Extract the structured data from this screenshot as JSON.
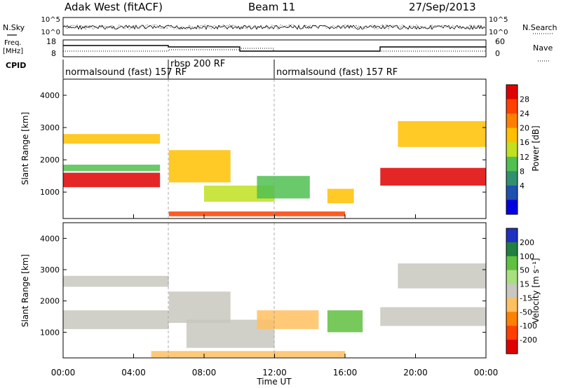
{
  "header": {
    "title": "Adak West (fitACF)",
    "beam": "Beam 11",
    "date": "27/Sep/2013"
  },
  "noise_panel": {
    "left_label": "N.Sky",
    "left_ticks": [
      "10^5",
      "10^0"
    ],
    "right_label": "N.Search",
    "right_ticks": [
      "10^5",
      "10^0"
    ]
  },
  "freq_panel": {
    "left_label_1": "Freq.",
    "left_label_2": "[MHz]",
    "left_ticks": [
      "18",
      "8"
    ],
    "right_label": "Nave",
    "right_ticks": [
      "60",
      "0"
    ]
  },
  "cpid": {
    "label": "CPID",
    "segments": [
      {
        "text": "normalsound (fast) 157 RF",
        "start_hour": 0
      },
      {
        "text": "rbsp 200 RF",
        "start_hour": 6
      },
      {
        "text": "normalsound (fast) 157 RF",
        "start_hour": 12
      }
    ]
  },
  "time_axis": {
    "label": "Time UT",
    "ticks": [
      "00:00",
      "04:00",
      "08:00",
      "12:00",
      "16:00",
      "20:00",
      "00:00"
    ]
  },
  "power_colorbar": {
    "label": "Power [dB]",
    "ticks": [
      "28",
      "24",
      "20",
      "16",
      "12",
      "8",
      "4"
    ],
    "colors": [
      "#e00000",
      "#ff4000",
      "#ff8000",
      "#ffc000",
      "#c0e020",
      "#50c050",
      "#309070",
      "#2050b0",
      "#0000e0"
    ]
  },
  "velocity_colorbar": {
    "label": "Velocity [m s⁻¹]",
    "ticks": [
      "200",
      "100",
      "50",
      "15",
      "-15",
      "-50",
      "-100",
      "-200"
    ],
    "colors": [
      "#2030c0",
      "#208040",
      "#60c040",
      "#a8e080",
      "#c8c8c0",
      "#ffc060",
      "#ff8000",
      "#ff4000",
      "#e00000"
    ]
  },
  "chart_data": [
    {
      "type": "heatmap",
      "title": "",
      "xlabel": "Time UT",
      "ylabel": "Slant Range [km]",
      "xlim": [
        0,
        24
      ],
      "ylim": [
        180,
        4500
      ],
      "yticks": [
        1000,
        2000,
        3000,
        4000
      ],
      "quantity": "Power [dB]",
      "zlim": [
        0,
        30
      ],
      "regions": [
        {
          "x": [
            0.0,
            5.5
          ],
          "y": [
            1150,
            1600
          ],
          "value": 28
        },
        {
          "x": [
            0.0,
            5.5
          ],
          "y": [
            2500,
            2800
          ],
          "value": 18
        },
        {
          "x": [
            0.0,
            5.5
          ],
          "y": [
            1650,
            1850
          ],
          "value": 10
        },
        {
          "x": [
            6.0,
            9.5
          ],
          "y": [
            1300,
            2300
          ],
          "value": 16
        },
        {
          "x": [
            8.0,
            12.0
          ],
          "y": [
            700,
            1200
          ],
          "value": 14
        },
        {
          "x": [
            11.0,
            14.0
          ],
          "y": [
            800,
            1500
          ],
          "value": 10
        },
        {
          "x": [
            6.0,
            16.0
          ],
          "y": [
            250,
            400
          ],
          "value": 24
        },
        {
          "x": [
            15.0,
            16.5
          ],
          "y": [
            650,
            1100
          ],
          "value": 18
        },
        {
          "x": [
            18.0,
            24.0
          ],
          "y": [
            1200,
            1750
          ],
          "value": 28
        },
        {
          "x": [
            19.0,
            24.0
          ],
          "y": [
            2400,
            3200
          ],
          "value": 16
        }
      ]
    },
    {
      "type": "heatmap",
      "title": "",
      "xlabel": "Time UT",
      "ylabel": "Slant Range [km]",
      "xlim": [
        0,
        24
      ],
      "ylim": [
        180,
        4500
      ],
      "yticks": [
        1000,
        2000,
        3000,
        4000
      ],
      "quantity": "Velocity [m s⁻¹]",
      "zlim": [
        -200,
        200
      ],
      "regions": [
        {
          "x": [
            0.0,
            6.0
          ],
          "y": [
            1100,
            1700
          ],
          "value": 0
        },
        {
          "x": [
            0.0,
            6.0
          ],
          "y": [
            2450,
            2800
          ],
          "value": 0
        },
        {
          "x": [
            6.0,
            9.5
          ],
          "y": [
            1300,
            2300
          ],
          "value": 0
        },
        {
          "x": [
            7.0,
            12.0
          ],
          "y": [
            500,
            1400
          ],
          "value": -15
        },
        {
          "x": [
            11.0,
            14.5
          ],
          "y": [
            1100,
            1700
          ],
          "value": -50
        },
        {
          "x": [
            5.0,
            16.0
          ],
          "y": [
            200,
            400
          ],
          "value": -50
        },
        {
          "x": [
            15.0,
            17.0
          ],
          "y": [
            1000,
            1700
          ],
          "value": 50
        },
        {
          "x": [
            18.0,
            24.0
          ],
          "y": [
            1200,
            1800
          ],
          "value": 0
        },
        {
          "x": [
            19.0,
            24.0
          ],
          "y": [
            2400,
            3200
          ],
          "value": 0
        }
      ]
    }
  ]
}
